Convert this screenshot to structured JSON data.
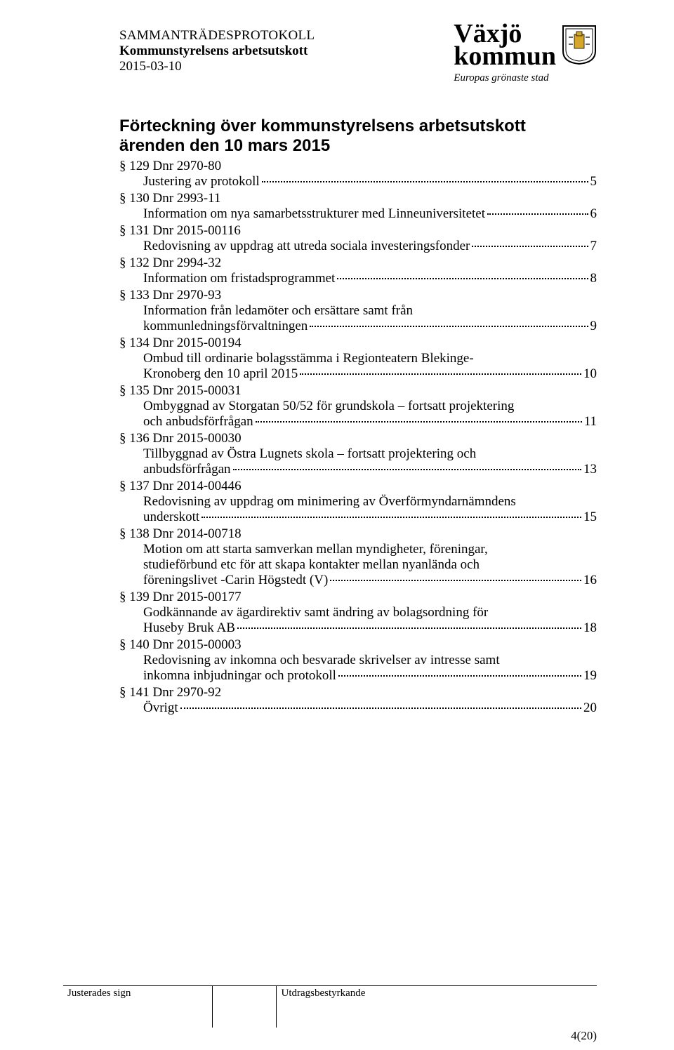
{
  "header": {
    "doc_type": "SAMMANTRÄDESPROTOKOLL",
    "committee": "Kommunstyrelsens arbetsutskott",
    "date": "2015-03-10"
  },
  "logo": {
    "line1": "Växjö",
    "line2": "kommun",
    "tagline": "Europas grönaste stad",
    "crest_bg": "#ffffff",
    "crest_border": "#000000",
    "crest_accent": "#d4a62a"
  },
  "heading": {
    "line1": "Förteckning över kommunstyrelsens arbetsutskott",
    "line2": "ärenden den 10 mars 2015"
  },
  "toc": [
    {
      "section": "§ 129 Dnr 2970-80",
      "title_lines": [
        "Justering av protokoll"
      ],
      "page": "5"
    },
    {
      "section": "§ 130 Dnr 2993-11",
      "title_lines": [
        "Information om nya samarbetsstrukturer med Linneuniversitetet"
      ],
      "page": "6"
    },
    {
      "section": "§ 131 Dnr 2015-00116",
      "title_lines": [
        "Redovisning av uppdrag att utreda sociala investeringsfonder"
      ],
      "page": "7"
    },
    {
      "section": "§ 132 Dnr 2994-32",
      "title_lines": [
        "Information om fristadsprogrammet"
      ],
      "page": "8"
    },
    {
      "section": "§ 133 Dnr 2970-93",
      "title_lines": [
        "Information från ledamöter och ersättare samt från",
        "kommunledningsförvaltningen"
      ],
      "page": "9"
    },
    {
      "section": "§ 134 Dnr 2015-00194",
      "title_lines": [
        "Ombud till ordinarie bolagsstämma i Regionteatern Blekinge-",
        "Kronoberg den 10 april 2015"
      ],
      "page": "10"
    },
    {
      "section": "§ 135 Dnr 2015-00031",
      "title_lines": [
        "Ombyggnad av Storgatan 50/52 för grundskola – fortsatt projektering",
        "och anbudsförfrågan"
      ],
      "page": "11"
    },
    {
      "section": "§ 136 Dnr 2015-00030",
      "title_lines": [
        "Tillbyggnad av Östra Lugnets skola – fortsatt projektering och",
        "anbudsförfrågan"
      ],
      "page": "13"
    },
    {
      "section": "§ 137 Dnr 2014-00446",
      "title_lines": [
        "Redovisning av uppdrag om minimering av Överförmyndarnämndens",
        "underskott"
      ],
      "page": "15"
    },
    {
      "section": "§ 138 Dnr 2014-00718",
      "title_lines": [
        "Motion om att starta samverkan mellan myndigheter, föreningar,",
        "studieförbund etc för att skapa kontakter mellan nyanlända och",
        "föreningslivet -Carin Högstedt (V)"
      ],
      "page": "16"
    },
    {
      "section": "§ 139 Dnr 2015-00177",
      "title_lines": [
        "Godkännande av ägardirektiv samt ändring av bolagsordning för",
        "Huseby Bruk AB"
      ],
      "page": "18"
    },
    {
      "section": "§ 140 Dnr 2015-00003",
      "title_lines": [
        "Redovisning av inkomna och besvarade skrivelser av intresse samt",
        "inkomna inbjudningar och protokoll"
      ],
      "page": "19"
    },
    {
      "section": "§ 141 Dnr 2970-92",
      "title_lines": [
        "Övrigt"
      ],
      "page": "20"
    }
  ],
  "footer": {
    "left": "Justerades sign",
    "right": "Utdragsbestyrkande",
    "page_num": "4(20)"
  },
  "style": {
    "body_font_size": 19,
    "heading_font_size": 24,
    "text_color": "#000000",
    "bg_color": "#ffffff"
  }
}
